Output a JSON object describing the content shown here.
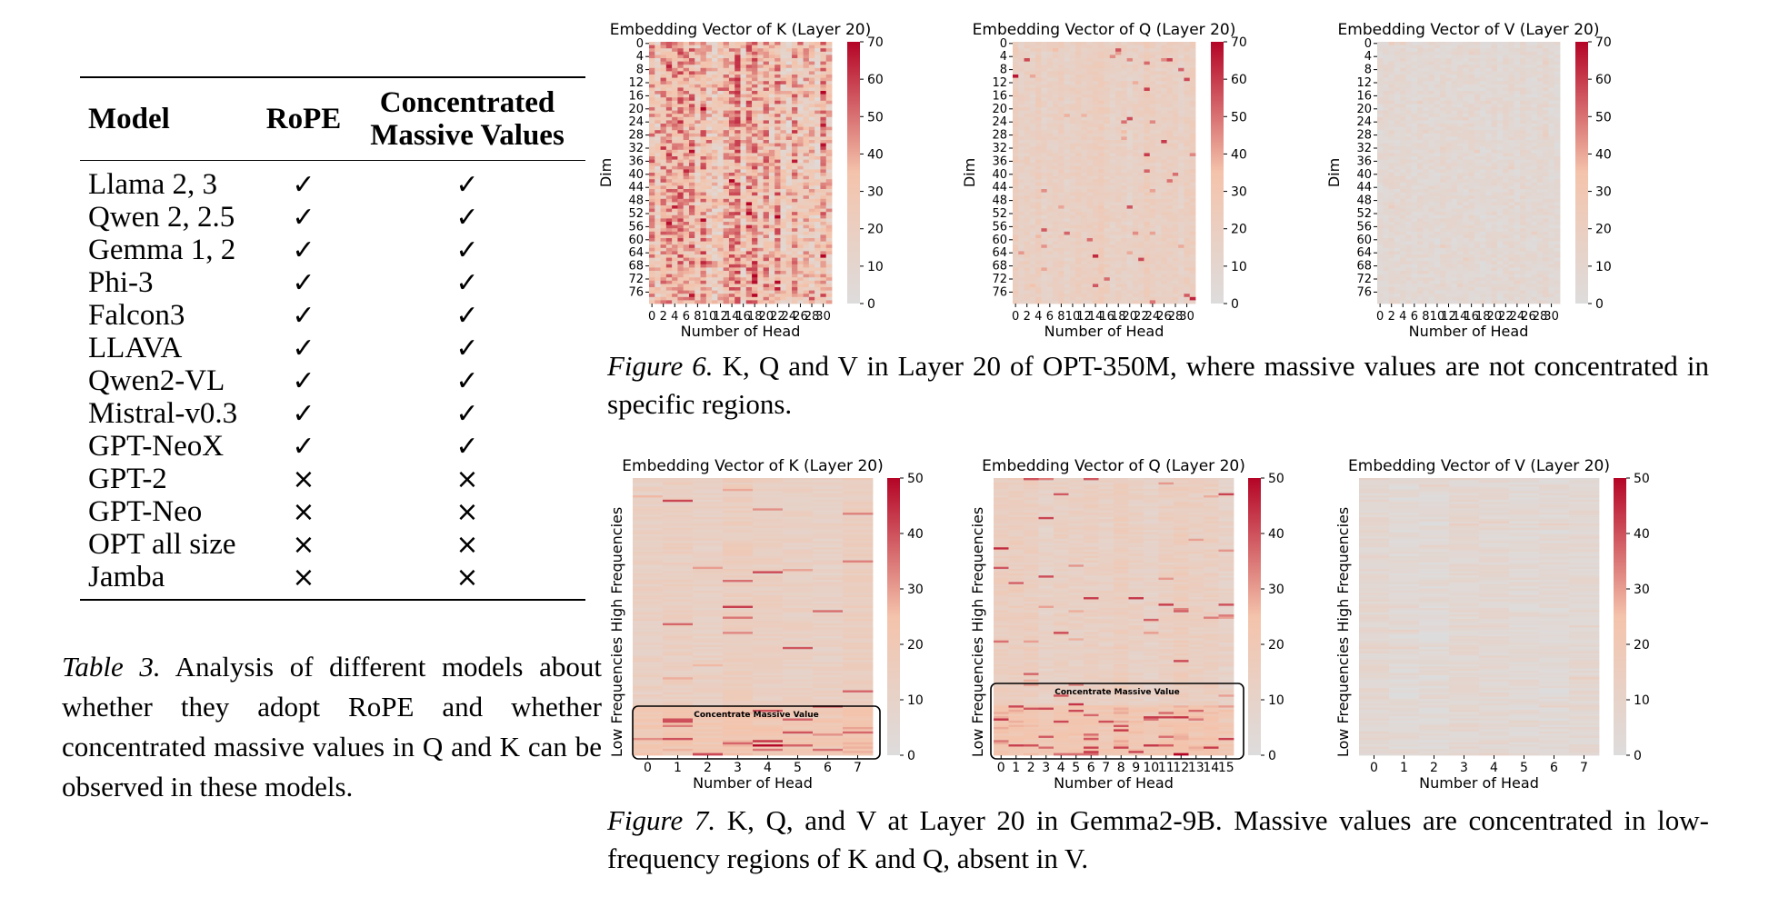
{
  "table": {
    "headers": {
      "model": "Model",
      "rope": "RoPE",
      "cmv_line1": "Concentrated",
      "cmv_line2": "Massive Values"
    },
    "rows": [
      {
        "model": "Llama 2, 3",
        "rope": "✓",
        "cmv": "✓"
      },
      {
        "model": "Qwen 2, 2.5",
        "rope": "✓",
        "cmv": "✓"
      },
      {
        "model": "Gemma 1, 2",
        "rope": "✓",
        "cmv": "✓"
      },
      {
        "model": "Phi-3",
        "rope": "✓",
        "cmv": "✓"
      },
      {
        "model": "Falcon3",
        "rope": "✓",
        "cmv": "✓"
      },
      {
        "model": "LLAVA",
        "rope": "✓",
        "cmv": "✓"
      },
      {
        "model": "Qwen2-VL",
        "rope": "✓",
        "cmv": "✓"
      },
      {
        "model": "Mistral-v0.3",
        "rope": "✓",
        "cmv": "✓"
      },
      {
        "model": "GPT-NeoX",
        "rope": "✓",
        "cmv": "✓"
      },
      {
        "model": "GPT-2",
        "rope": "×",
        "cmv": "×"
      },
      {
        "model": "GPT-Neo",
        "rope": "×",
        "cmv": "×"
      },
      {
        "model": "OPT all size",
        "rope": "×",
        "cmv": "×"
      },
      {
        "model": "Jamba",
        "rope": "×",
        "cmv": "×"
      }
    ],
    "caption_label": "Table 3.",
    "caption_text": " Analysis of different models about whether they adopt RoPE and whether concentrated massive values in Q and K can be observed in these models."
  },
  "figure6": {
    "caption_label": "Figure 6.",
    "caption_text": " K, Q and V in Layer 20 of OPT-350M, where massive values are not concentrated in specific regions."
  },
  "figure7": {
    "caption_label": "Figure 7.",
    "caption_text": " K, Q, and V at Layer 20 in Gemma2-9B. Massive values are concentrated in low-frequency regions of K and Q, absent in V.",
    "annotation": "Concentrate Massive Value"
  },
  "colors": {
    "low": "#dddcdc",
    "mid": "#f4c3ab",
    "high": "#b40426",
    "text": "#000000"
  },
  "chart_data": [
    {
      "type": "heatmap",
      "figure": "Figure 6",
      "title": "Embedding Vector of K (Layer 20)",
      "xlabel": "Number of Head",
      "ylabel": "Dim",
      "x_ticks": [
        "0",
        "2",
        "4",
        "6",
        "8",
        "10",
        "12",
        "14",
        "16",
        "18",
        "20",
        "22",
        "24",
        "26",
        "28",
        "30"
      ],
      "y_ticks": [
        "0",
        "4",
        "8",
        "12",
        "16",
        "20",
        "24",
        "28",
        "32",
        "36",
        "40",
        "44",
        "48",
        "52",
        "56",
        "60",
        "64",
        "68",
        "72",
        "76"
      ],
      "n_cols": 32,
      "n_rows": 80,
      "colorbar": {
        "min": 0,
        "max": 70,
        "ticks": [
          "0",
          "10",
          "20",
          "30",
          "40",
          "50",
          "60",
          "70"
        ]
      },
      "intensity": "high"
    },
    {
      "type": "heatmap",
      "figure": "Figure 6",
      "title": "Embedding Vector of Q (Layer 20)",
      "xlabel": "Number of Head",
      "ylabel": "Dim",
      "x_ticks": [
        "0",
        "2",
        "4",
        "6",
        "8",
        "10",
        "12",
        "14",
        "16",
        "18",
        "20",
        "22",
        "24",
        "26",
        "28",
        "30"
      ],
      "y_ticks": [
        "0",
        "4",
        "8",
        "12",
        "16",
        "20",
        "24",
        "28",
        "32",
        "36",
        "40",
        "44",
        "48",
        "52",
        "56",
        "60",
        "64",
        "68",
        "72",
        "76"
      ],
      "n_cols": 32,
      "n_rows": 80,
      "colorbar": {
        "min": 0,
        "max": 70,
        "ticks": [
          "0",
          "10",
          "20",
          "30",
          "40",
          "50",
          "60",
          "70"
        ]
      },
      "intensity": "medium"
    },
    {
      "type": "heatmap",
      "figure": "Figure 6",
      "title": "Embedding Vector of V (Layer 20)",
      "xlabel": "Number of Head",
      "ylabel": "Dim",
      "x_ticks": [
        "0",
        "2",
        "4",
        "6",
        "8",
        "10",
        "12",
        "14",
        "16",
        "18",
        "20",
        "22",
        "24",
        "26",
        "28",
        "30"
      ],
      "y_ticks": [
        "0",
        "4",
        "8",
        "12",
        "16",
        "20",
        "24",
        "28",
        "32",
        "36",
        "40",
        "44",
        "48",
        "52",
        "56",
        "60",
        "64",
        "68",
        "72",
        "76"
      ],
      "n_cols": 32,
      "n_rows": 80,
      "colorbar": {
        "min": 0,
        "max": 70,
        "ticks": [
          "0",
          "10",
          "20",
          "30",
          "40",
          "50",
          "60",
          "70"
        ]
      },
      "intensity": "low"
    },
    {
      "type": "heatmap",
      "figure": "Figure 7",
      "title": "Embedding Vector of K (Layer 20)",
      "xlabel": "Number of Head",
      "ylabel_high": "High Frequencies",
      "ylabel_low": "Low Frequencies",
      "x_ticks": [
        "0",
        "1",
        "2",
        "3",
        "4",
        "5",
        "6",
        "7"
      ],
      "n_cols": 8,
      "n_rows": 128,
      "colorbar": {
        "min": 0,
        "max": 50,
        "ticks": [
          "0",
          "10",
          "20",
          "30",
          "40",
          "50"
        ]
      },
      "intensity": "medium",
      "concentrated_low": true
    },
    {
      "type": "heatmap",
      "figure": "Figure 7",
      "title": "Embedding Vector of Q (Layer 20)",
      "xlabel": "Number of Head",
      "ylabel_high": "High Frequencies",
      "ylabel_low": "Low Frequencies",
      "x_ticks": [
        "0",
        "1",
        "2",
        "3",
        "4",
        "5",
        "6",
        "7",
        "8",
        "9",
        "10",
        "11",
        "12",
        "13",
        "14",
        "15"
      ],
      "n_cols": 16,
      "n_rows": 128,
      "colorbar": {
        "min": 0,
        "max": 50,
        "ticks": [
          "0",
          "10",
          "20",
          "30",
          "40",
          "50"
        ]
      },
      "intensity": "medium",
      "concentrated_low": true
    },
    {
      "type": "heatmap",
      "figure": "Figure 7",
      "title": "Embedding Vector of V (Layer 20)",
      "xlabel": "Number of Head",
      "ylabel_high": "High Frequencies",
      "ylabel_low": "Low Frequencies",
      "x_ticks": [
        "0",
        "1",
        "2",
        "3",
        "4",
        "5",
        "6",
        "7"
      ],
      "n_cols": 8,
      "n_rows": 128,
      "colorbar": {
        "min": 0,
        "max": 50,
        "ticks": [
          "0",
          "10",
          "20",
          "30",
          "40",
          "50"
        ]
      },
      "intensity": "low",
      "concentrated_low": false
    }
  ]
}
